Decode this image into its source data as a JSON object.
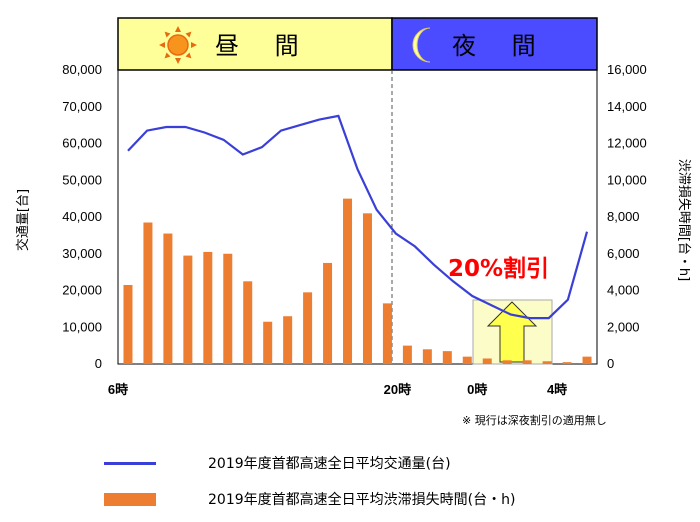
{
  "chart_data": {
    "type": "bar+line",
    "period_labels": {
      "day": "昼 間",
      "night": "夜 間"
    },
    "colors": {
      "day_band": "#ffff99",
      "night_band": "#4b4bff",
      "bar": "#ed7d31",
      "line": "#3a3fd8",
      "discount_text": "#ff0000",
      "arrow": "#ffff4d",
      "arrow_box": "#fcfcc8"
    },
    "y_left": {
      "label": "交通量[台]",
      "ticks": [
        "80,000",
        "70,000",
        "60,000",
        "50,000",
        "40,000",
        "30,000",
        "20,000",
        "10,000",
        "0"
      ],
      "range": [
        0,
        80000
      ]
    },
    "y_right": {
      "label": "渋滞損失時間[台・h]",
      "ticks": [
        "16,000",
        "14,000",
        "12,000",
        "10,000",
        "8,000",
        "6,000",
        "4,000",
        "2,000",
        "0"
      ],
      "range": [
        0,
        16000
      ]
    },
    "x_ticks": [
      {
        "hour_index": 0,
        "label": "6時"
      },
      {
        "hour_index": 14,
        "label": "20時"
      },
      {
        "hour_index": 18,
        "label": "0時"
      },
      {
        "hour_index": 22,
        "label": "4時"
      }
    ],
    "day_night_boundary_index": 14,
    "hours": 24,
    "series": [
      {
        "name": "2019年度首都高速全日平均渋滞損失時間(台・h)",
        "kind": "bar",
        "axis": "right",
        "values": [
          4300,
          7700,
          7100,
          5900,
          6100,
          6000,
          4500,
          2300,
          2600,
          3900,
          5500,
          9000,
          8200,
          3300,
          1000,
          800,
          700,
          400,
          300,
          200,
          200,
          150,
          100,
          400
        ]
      },
      {
        "name": "2019年度首都高速全日平均交通量(台)",
        "kind": "line",
        "axis": "left",
        "values": [
          58000,
          63500,
          64500,
          64500,
          63000,
          61000,
          57000,
          59000,
          63500,
          65000,
          66500,
          67500,
          53000,
          42000,
          35500,
          32000,
          27000,
          22500,
          18500,
          16000,
          13500,
          12500,
          12500,
          17500,
          36000
        ]
      }
    ],
    "annotation": "20%割引",
    "note": "※ 現行は深夜割引の適用無し"
  },
  "legend": [
    {
      "label": "2019年度首都高速全日平均交通量(台)"
    },
    {
      "label": "2019年度首都高速全日平均渋滞損失時間(台・h)"
    }
  ]
}
